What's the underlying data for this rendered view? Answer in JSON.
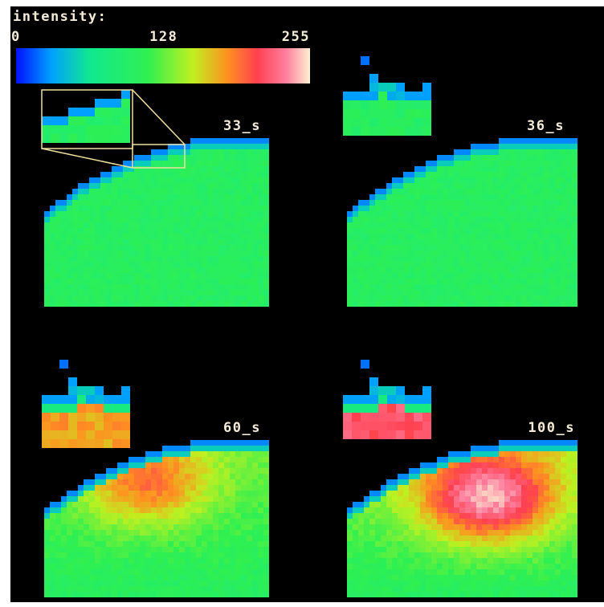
{
  "colorbar": {
    "title": "intensity:",
    "range": [
      0,
      255
    ],
    "ticks": [
      0,
      128,
      255
    ]
  },
  "panels": [
    {
      "label": "33_s"
    },
    {
      "label": "36_s"
    },
    {
      "label": "60_s"
    },
    {
      "label": "100_s"
    }
  ]
}
